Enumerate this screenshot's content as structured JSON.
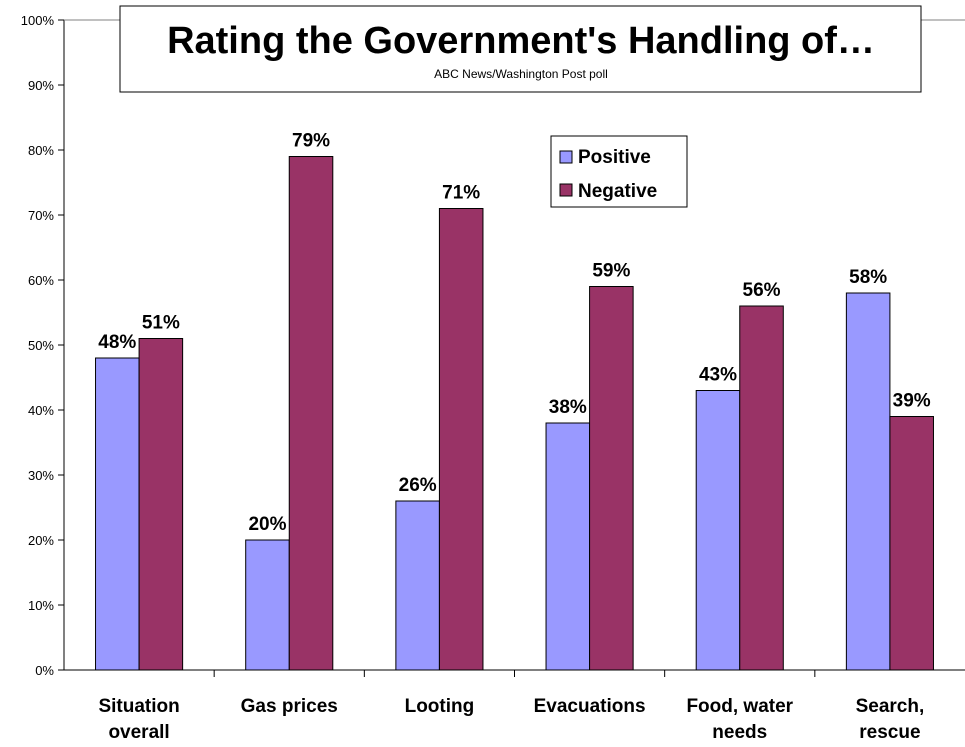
{
  "chart_data": {
    "type": "bar",
    "title": "Rating the Government's Handling of…",
    "subtitle": "ABC News/Washington Post poll",
    "categories": [
      [
        "Situation",
        "overall"
      ],
      [
        "Gas prices"
      ],
      [
        "Looting"
      ],
      [
        "Evacuations"
      ],
      [
        "Food, water",
        "needs"
      ],
      [
        "Search,",
        "rescue"
      ]
    ],
    "series": [
      {
        "name": "Positive",
        "color": "#9999ff",
        "values": [
          48,
          20,
          26,
          38,
          43,
          58
        ]
      },
      {
        "name": "Negative",
        "color": "#993366",
        "values": [
          51,
          79,
          71,
          59,
          56,
          39
        ]
      }
    ],
    "value_suffix": "%",
    "ylim": [
      0,
      100
    ],
    "yticks": [
      "0%",
      "10%",
      "20%",
      "30%",
      "40%",
      "50%",
      "60%",
      "70%",
      "80%",
      "90%",
      "100%"
    ],
    "grid": false,
    "legend": "top-center"
  }
}
